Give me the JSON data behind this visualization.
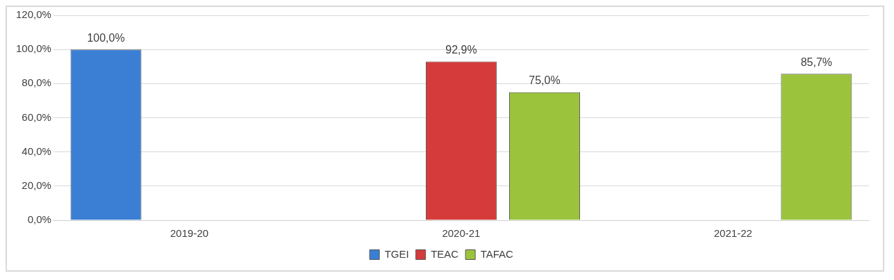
{
  "chart_data": {
    "type": "bar",
    "categories": [
      "2019-20",
      "2020-21",
      "2021-22"
    ],
    "series": [
      {
        "name": "TGEI",
        "color": "#3a7fd4",
        "values": [
          100.0,
          null,
          null
        ],
        "value_labels": [
          "100,0%",
          null,
          null
        ]
      },
      {
        "name": "TEAC",
        "color": "#d63b3b",
        "values": [
          null,
          92.9,
          null
        ],
        "value_labels": [
          null,
          "92,9%",
          null
        ]
      },
      {
        "name": "TAFAC",
        "color": "#9bc33c",
        "values": [
          null,
          75.0,
          85.7
        ],
        "value_labels": [
          null,
          "75,0%",
          "85,7%"
        ]
      }
    ],
    "ylim": [
      0,
      120
    ],
    "yticks": [
      {
        "value": 0,
        "label": "0,0%"
      },
      {
        "value": 20,
        "label": "20,0%"
      },
      {
        "value": 40,
        "label": "40,0%"
      },
      {
        "value": 60,
        "label": "60,0%"
      },
      {
        "value": 80,
        "label": "80,0%"
      },
      {
        "value": 100,
        "label": "100,0%"
      },
      {
        "value": 120,
        "label": "120,0%"
      }
    ],
    "grid": "y",
    "legend": "bottom"
  }
}
